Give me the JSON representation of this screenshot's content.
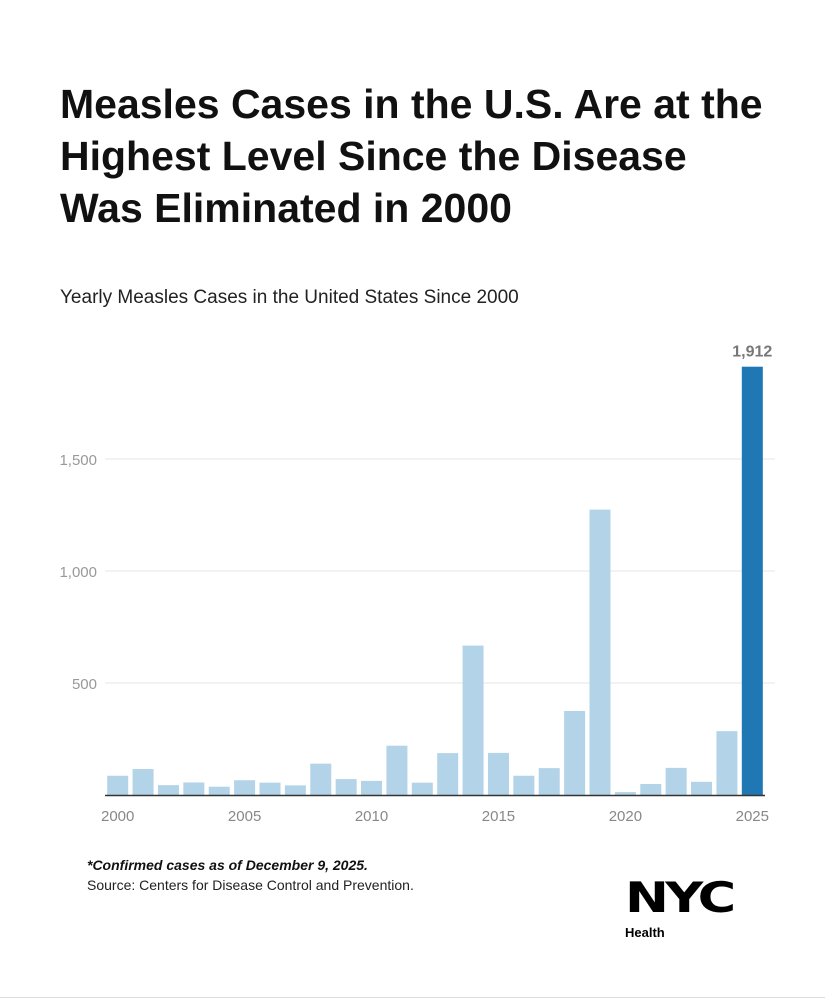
{
  "title": "Measles Cases in the U.S. Are at the Highest Level Since the Disease Was Eliminated in 2000",
  "subtitle": "Yearly Measles Cases in the United States Since 2000",
  "chart_data": {
    "type": "bar",
    "title": "Measles Cases in the U.S. Are at the Highest Level Since the Disease Was Eliminated in 2000",
    "subtitle": "Yearly Measles Cases in the United States Since 2000",
    "categories": [
      "2000",
      "2001",
      "2002",
      "2003",
      "2004",
      "2005",
      "2006",
      "2007",
      "2008",
      "2009",
      "2010",
      "2011",
      "2012",
      "2013",
      "2014",
      "2015",
      "2016",
      "2017",
      "2018",
      "2019",
      "2020",
      "2021",
      "2022",
      "2023",
      "2024",
      "2025"
    ],
    "values": [
      86,
      116,
      44,
      56,
      37,
      66,
      55,
      43,
      140,
      71,
      63,
      220,
      55,
      187,
      667,
      188,
      86,
      120,
      375,
      1274,
      13,
      49,
      121,
      59,
      285,
      1912
    ],
    "x_tick_labels": [
      "2000",
      "2005",
      "2010",
      "2015",
      "2020",
      "2025"
    ],
    "y_tick_labels": [
      "500",
      "1,000",
      "1,500"
    ],
    "y_ticks": [
      500,
      1000,
      1500
    ],
    "ylim": [
      0,
      1950
    ],
    "xlabel": "",
    "ylabel": "",
    "grid": true,
    "data_labels": [
      {
        "category": "2025",
        "text": "1,912"
      }
    ],
    "colors": {
      "default": "#b3d3e8",
      "highlight": "#1f77b4",
      "grid": "#e6e6e6",
      "tick": "#999999"
    }
  },
  "footnote": "*Confirmed cases as of December 9, 2025.",
  "source": "Source: Centers for Disease Control and Prevention.",
  "logo": {
    "text": "NYC",
    "sub": "Health"
  }
}
